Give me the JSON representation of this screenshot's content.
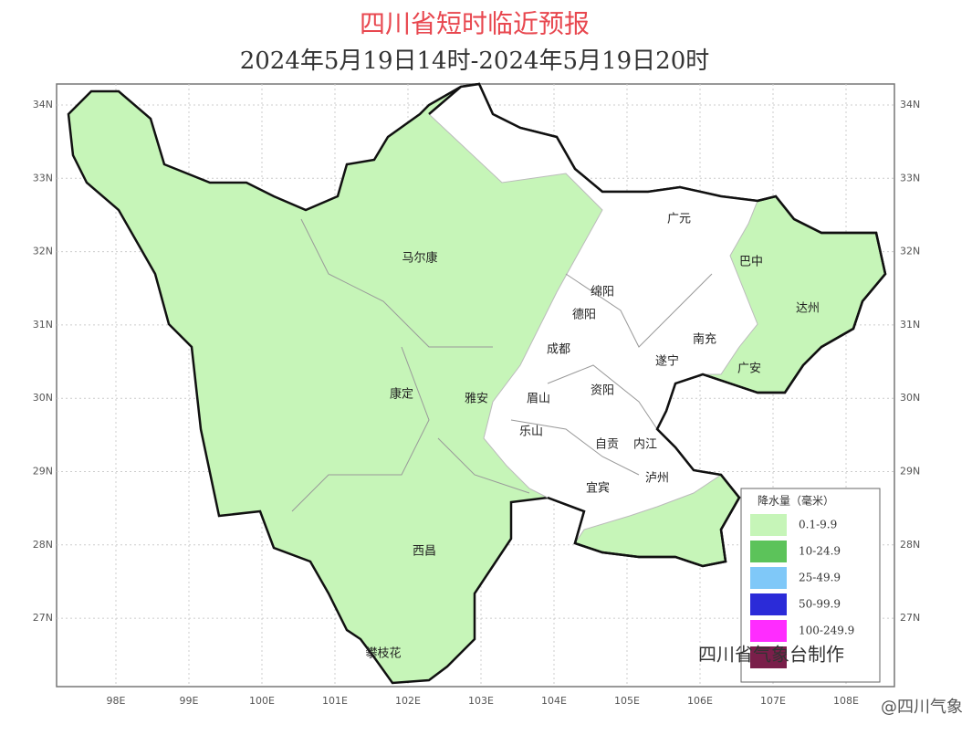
{
  "header": {
    "title": "四川省短时临近预报",
    "subtitle": "2024年5月19日14时-2024年5月19日20时"
  },
  "lat_labels": [
    "34N",
    "33N",
    "32N",
    "31N",
    "30N",
    "29N",
    "28N",
    "27N"
  ],
  "lon_labels": [
    "98E",
    "99E",
    "100E",
    "101E",
    "102E",
    "103E",
    "104E",
    "105E",
    "106E",
    "107E",
    "108E"
  ],
  "cities": [
    "马尔康",
    "康定",
    "雅安",
    "西昌",
    "攀枝花",
    "广元",
    "巴中",
    "达州",
    "绵阳",
    "德阳",
    "成都",
    "南充",
    "遂宁",
    "广安",
    "眉山",
    "资阳",
    "乐山",
    "自贡",
    "内江",
    "宜宾",
    "泸州"
  ],
  "legend": {
    "title": "降水量（毫米）",
    "items": [
      "0.1-9.9",
      "10-24.9",
      "25-49.9",
      "50-99.9",
      "100-249.9"
    ]
  },
  "credit": "四川省气象台制作",
  "watermark": "@四川气象"
}
